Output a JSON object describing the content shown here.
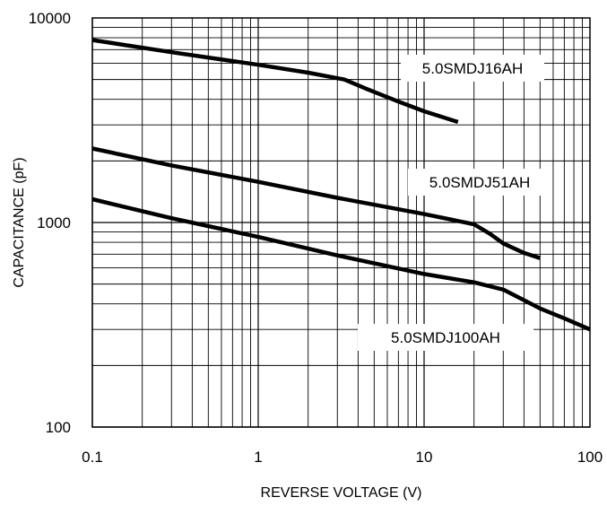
{
  "chart_data": {
    "type": "line",
    "title": "",
    "xlabel": "REVERSE VOLTAGE (V)",
    "ylabel": "CAPACITANCE (pF)",
    "x_scale": "log",
    "y_scale": "log",
    "xlim": [
      0.1,
      100
    ],
    "ylim": [
      100,
      10000
    ],
    "x_ticks": [
      0.1,
      1,
      10,
      100
    ],
    "x_tick_labels": [
      "0.1",
      "1",
      "10",
      "100"
    ],
    "y_ticks": [
      100,
      1000,
      10000
    ],
    "y_tick_labels": [
      "100",
      "1000",
      "10000"
    ],
    "grid": true,
    "series": [
      {
        "name": "5.0SMDJ16AH",
        "x": [
          0.1,
          0.3,
          1,
          2,
          3.3,
          4.5,
          7,
          10,
          16
        ],
        "y": [
          7800,
          6800,
          5900,
          5400,
          5000,
          4500,
          3900,
          3500,
          3100
        ]
      },
      {
        "name": "5.0SMDJ51AH",
        "x": [
          0.1,
          0.3,
          1,
          3,
          10,
          20,
          25,
          30,
          40,
          50
        ],
        "y": [
          2300,
          1900,
          1580,
          1320,
          1100,
          980,
          880,
          790,
          710,
          670
        ]
      },
      {
        "name": "5.0SMDJ100AH",
        "x": [
          0.1,
          0.3,
          1,
          3,
          10,
          20,
          30,
          50,
          70,
          100
        ],
        "y": [
          1300,
          1050,
          850,
          690,
          560,
          510,
          470,
          380,
          340,
          300
        ]
      }
    ]
  }
}
